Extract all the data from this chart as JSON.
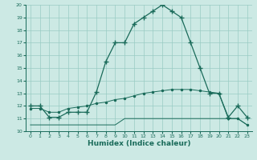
{
  "title": "",
  "xlabel": "Humidex (Indice chaleur)",
  "ylabel": "",
  "xlim": [
    -0.5,
    23.5
  ],
  "ylim": [
    10,
    20
  ],
  "yticks": [
    10,
    11,
    12,
    13,
    14,
    15,
    16,
    17,
    18,
    19,
    20
  ],
  "xticks": [
    0,
    1,
    2,
    3,
    4,
    5,
    6,
    7,
    8,
    9,
    10,
    11,
    12,
    13,
    14,
    15,
    16,
    17,
    18,
    19,
    20,
    21,
    22,
    23
  ],
  "bg_color": "#cce9e4",
  "grid_color": "#99ccc4",
  "line_color": "#1a6b5a",
  "line1_x": [
    0,
    1,
    2,
    3,
    4,
    5,
    6,
    7,
    8,
    9,
    10,
    11,
    12,
    13,
    14,
    15,
    16,
    17,
    18,
    19,
    20,
    21,
    22,
    23
  ],
  "line1_y": [
    12,
    12,
    11.1,
    11.1,
    11.5,
    11.5,
    11.5,
    13.1,
    15.5,
    17,
    17,
    18.5,
    19,
    19.5,
    20,
    19.5,
    19,
    17,
    15,
    13,
    13,
    11.1,
    12,
    11.1
  ],
  "line2_x": [
    0,
    1,
    2,
    3,
    4,
    5,
    6,
    7,
    8,
    9,
    10,
    11,
    12,
    13,
    14,
    15,
    16,
    17,
    18,
    19,
    20,
    21,
    22,
    23
  ],
  "line2_y": [
    10.5,
    10.5,
    10.5,
    10.5,
    10.5,
    10.5,
    10.5,
    10.5,
    10.5,
    10.5,
    11.0,
    11.0,
    11.0,
    11.0,
    11.0,
    11.0,
    11.0,
    11.0,
    11.0,
    11.0,
    11.0,
    11.0,
    11.0,
    10.5
  ],
  "line3_x": [
    0,
    1,
    2,
    3,
    4,
    5,
    6,
    7,
    8,
    9,
    10,
    11,
    12,
    13,
    14,
    15,
    16,
    17,
    18,
    19,
    20,
    21,
    22,
    23
  ],
  "line3_y": [
    11.8,
    11.8,
    11.5,
    11.5,
    11.8,
    11.9,
    12.0,
    12.2,
    12.3,
    12.5,
    12.6,
    12.8,
    13.0,
    13.1,
    13.2,
    13.3,
    13.3,
    13.3,
    13.2,
    13.1,
    13.0,
    11.0,
    11.0,
    10.5
  ]
}
